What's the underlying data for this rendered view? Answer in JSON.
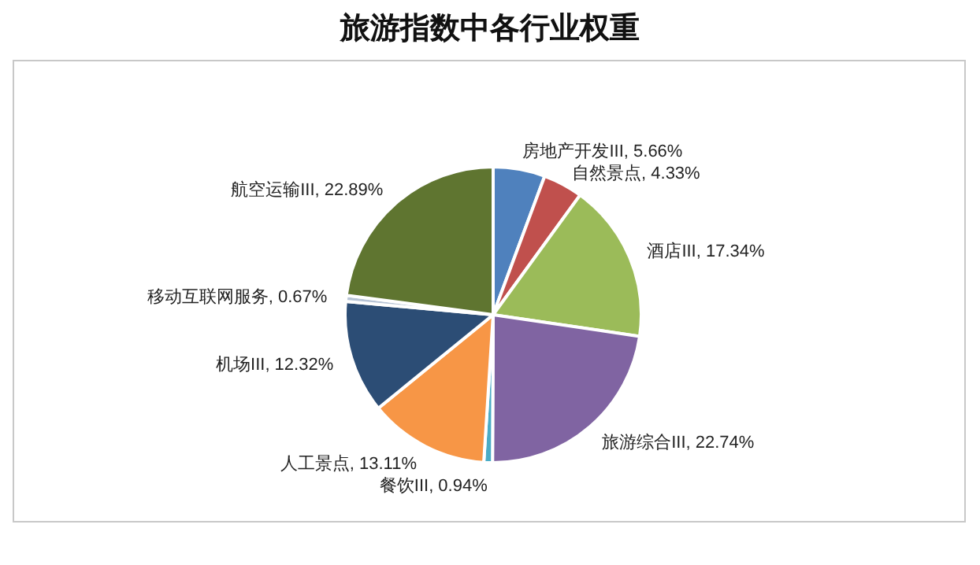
{
  "chart_data": {
    "type": "pie",
    "title": "旅游指数中各行业权重",
    "categories": [
      "房地产开发III",
      "自然景点",
      "酒店III",
      "旅游综合III",
      "餐饮III",
      "人工景点",
      "机场III",
      "移动互联网服务",
      "航空运输III"
    ],
    "values": [
      5.66,
      4.33,
      17.34,
      22.74,
      0.94,
      13.11,
      12.32,
      0.67,
      22.89
    ],
    "value_labels": [
      "5.66%",
      "4.33%",
      "17.34%",
      "22.74%",
      "0.94%",
      "13.11%",
      "12.32%",
      "0.67%",
      "22.89%"
    ],
    "colors": [
      "#4f81bd",
      "#c0504d",
      "#9bbb59",
      "#8064a2",
      "#4bacc6",
      "#f79646",
      "#2c4d75",
      "#b7c4d6",
      "#5f7530"
    ]
  }
}
